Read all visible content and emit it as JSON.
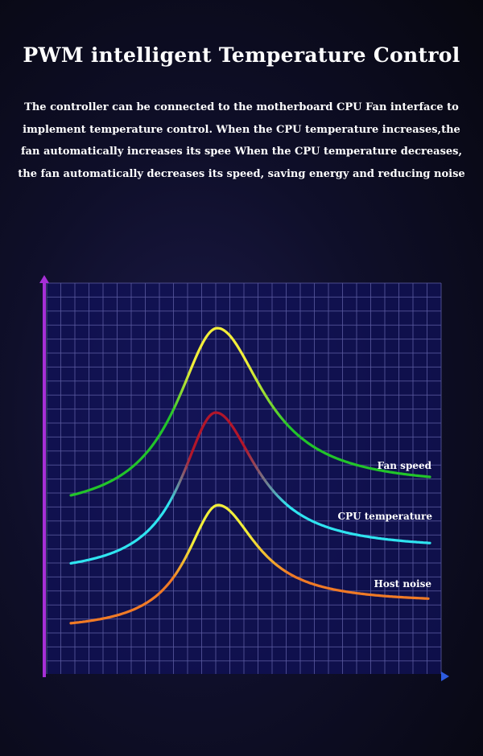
{
  "header": {
    "title": "PWM intelligent Temperature Control"
  },
  "description": {
    "lines": [
      "The controller can be connected to the motherboard CPU Fan interface to",
      "implement temperature  control. When the CPU temperature increases,the",
      "fan automatically increases its spee When the CPU temperature decreases,",
      "the fan automatically decreases its speed, saving energy and reducing noise"
    ]
  },
  "diagram": {
    "curves": [
      {
        "label": "Fan speed",
        "colors": [
          "#22c42a",
          "#f2ee3a",
          "#22c42a"
        ]
      },
      {
        "label": "CPU temperature",
        "colors": [
          "#2fe4f0",
          "#b3162a",
          "#2fe4f0"
        ]
      },
      {
        "label": "Host noise",
        "colors": [
          "#f07a26",
          "#f2ee3a",
          "#f07a26"
        ]
      }
    ],
    "grid_color": "#5a5aa0",
    "axis_colors": [
      "#a62fd6",
      "#2d5be0"
    ]
  }
}
